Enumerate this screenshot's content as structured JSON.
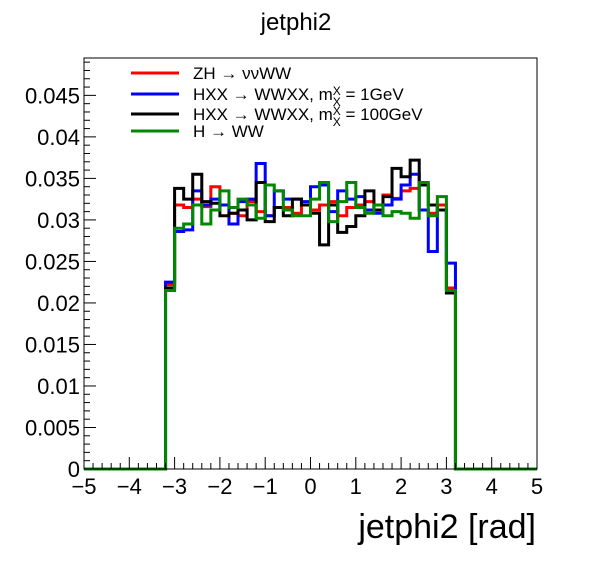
{
  "chart_data": {
    "type": "line",
    "title": "jetphi2",
    "xlabel": "jetphi2 [rad]",
    "ylabel": "",
    "xlim": [
      -5,
      5
    ],
    "ylim": [
      0,
      0.0495
    ],
    "grid": false,
    "legend_position": "top-left",
    "x_ticks": [
      -5,
      -4,
      -3,
      -2,
      -1,
      0,
      1,
      2,
      3,
      4,
      5
    ],
    "x_tick_labels": [
      "−5",
      "−4",
      "−3",
      "−2",
      "−1",
      "0",
      "1",
      "2",
      "3",
      "4",
      "5"
    ],
    "y_ticks": [
      0,
      0.005,
      0.01,
      0.015,
      0.02,
      0.025,
      0.03,
      0.035,
      0.04,
      0.045
    ],
    "y_tick_labels": [
      "0",
      "0.005",
      "0.01",
      "0.015",
      "0.02",
      "0.025",
      "0.03",
      "0.035",
      "0.04",
      "0.045"
    ],
    "bin_edges": [
      -3.2,
      -3.0,
      -2.8,
      -2.6,
      -2.4,
      -2.2,
      -2.0,
      -1.8,
      -1.6,
      -1.4,
      -1.2,
      -1.0,
      -0.8,
      -0.6,
      -0.4,
      -0.2,
      0.0,
      0.2,
      0.4,
      0.6,
      0.8,
      1.0,
      1.2,
      1.4,
      1.6,
      1.8,
      2.0,
      2.2,
      2.4,
      2.6,
      2.8,
      3.0,
      3.2
    ],
    "series": [
      {
        "name": "ZH → ννWW",
        "color": "#ff0000",
        "values": [
          0.0222,
          0.0318,
          0.0315,
          0.0325,
          0.0316,
          0.034,
          0.0318,
          0.0308,
          0.0305,
          0.0322,
          0.031,
          0.0305,
          0.0315,
          0.0315,
          0.0308,
          0.0318,
          0.0312,
          0.0318,
          0.0322,
          0.0305,
          0.0315,
          0.0318,
          0.0322,
          0.0312,
          0.033,
          0.0326,
          0.0335,
          0.0338,
          0.0312,
          0.0308,
          0.0318,
          0.0218
        ]
      },
      {
        "name": "HXX → WWXX, m",
        "name_sub": "X",
        "name_suffix": " = 1GeV",
        "color": "#0000ff",
        "values": [
          0.0225,
          0.0286,
          0.0288,
          0.0335,
          0.0318,
          0.0325,
          0.0318,
          0.0295,
          0.0322,
          0.0325,
          0.0368,
          0.0305,
          0.0335,
          0.0325,
          0.0325,
          0.0322,
          0.034,
          0.0342,
          0.031,
          0.0335,
          0.0325,
          0.0328,
          0.0312,
          0.0308,
          0.0318,
          0.0325,
          0.0342,
          0.0355,
          0.0312,
          0.0262,
          0.0312,
          0.0248
        ]
      },
      {
        "name": "HXX → WWXX, m",
        "name_sub": "X",
        "name_suffix": " = 100GeV",
        "color": "#000000",
        "values": [
          0.0218,
          0.0338,
          0.0325,
          0.0355,
          0.0322,
          0.032,
          0.0305,
          0.0308,
          0.0312,
          0.03,
          0.0345,
          0.0298,
          0.0315,
          0.0305,
          0.0325,
          0.0318,
          0.0308,
          0.027,
          0.0318,
          0.0285,
          0.0292,
          0.0305,
          0.0335,
          0.0312,
          0.0328,
          0.0362,
          0.0352,
          0.0372,
          0.0342,
          0.0318,
          0.0312,
          0.0212
        ]
      },
      {
        "name": "H → WW",
        "color": "#008800",
        "values": [
          0.0215,
          0.029,
          0.0295,
          0.0318,
          0.0295,
          0.0312,
          0.0335,
          0.0315,
          0.0325,
          0.0318,
          0.0302,
          0.0342,
          0.0335,
          0.0312,
          0.0305,
          0.0305,
          0.0325,
          0.0345,
          0.0298,
          0.0322,
          0.0345,
          0.0315,
          0.0308,
          0.0318,
          0.0305,
          0.031,
          0.0308,
          0.0302,
          0.0345,
          0.0305,
          0.0328,
          0.0215
        ]
      }
    ]
  }
}
